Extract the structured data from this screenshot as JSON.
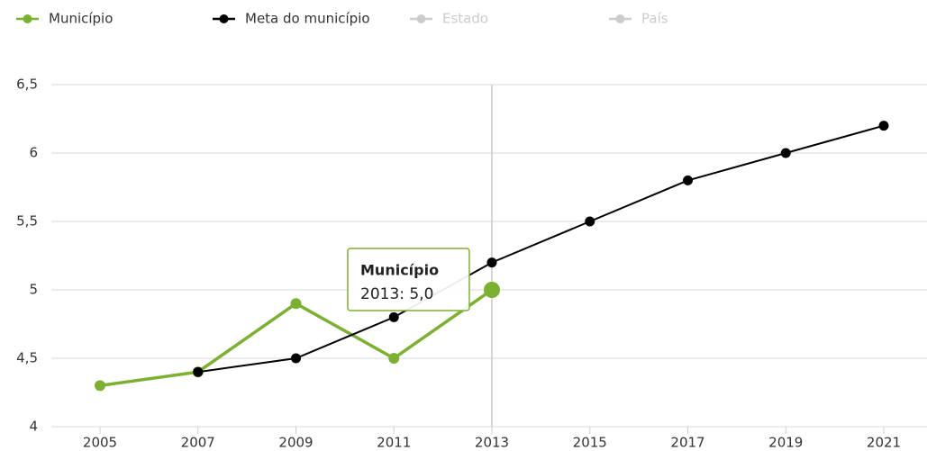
{
  "chart_data": {
    "type": "line",
    "categories": [
      "2005",
      "2007",
      "2009",
      "2011",
      "2013",
      "2015",
      "2017",
      "2019",
      "2021"
    ],
    "series": [
      {
        "name": "Município",
        "color": "#7cb032",
        "visible": true,
        "values": [
          4.3,
          4.4,
          4.9,
          4.5,
          5.0,
          null,
          null,
          null,
          null
        ]
      },
      {
        "name": "Meta do município",
        "color": "#000000",
        "visible": true,
        "values": [
          null,
          4.4,
          4.5,
          4.8,
          5.2,
          5.5,
          5.8,
          6.0,
          6.2
        ]
      },
      {
        "name": "Estado",
        "color": "#cccccc",
        "visible": false,
        "values": [
          null,
          null,
          null,
          null,
          null,
          null,
          null,
          null,
          null
        ]
      },
      {
        "name": "País",
        "color": "#cccccc",
        "visible": false,
        "values": [
          null,
          null,
          null,
          null,
          null,
          null,
          null,
          null,
          null
        ]
      }
    ],
    "ylim": [
      4,
      6.5
    ],
    "yticks": [
      4,
      {
        "value": 4.5,
        "label": "4,5"
      },
      {
        "value": 5,
        "label": "5"
      },
      {
        "value": 5.5,
        "label": "5,5"
      },
      6,
      {
        "value": 6.5,
        "label": "6,5"
      }
    ],
    "grid": true,
    "tooltip": {
      "title": "Município",
      "text": "2013: 5,0"
    }
  }
}
